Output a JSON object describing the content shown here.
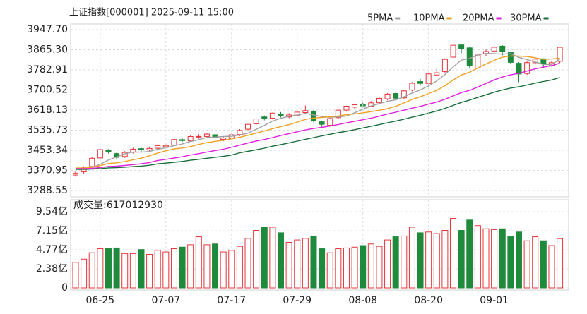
{
  "chart_data": [
    {
      "type": "candlestick",
      "title": "上证指数[000001] 2025-09-11 15:00",
      "categories": [
        null,
        null,
        null,
        "06-25",
        null,
        null,
        null,
        null,
        null,
        null,
        null,
        "07-07",
        null,
        null,
        null,
        null,
        null,
        null,
        null,
        "07-17",
        null,
        null,
        null,
        null,
        null,
        null,
        null,
        "07-29",
        null,
        null,
        null,
        null,
        null,
        null,
        null,
        "08-08",
        null,
        null,
        null,
        null,
        null,
        null,
        null,
        "08-20",
        null,
        null,
        null,
        null,
        null,
        null,
        null,
        "09-01",
        null,
        null,
        null,
        null,
        null,
        null,
        null,
        null
      ],
      "open": [
        3352,
        3365,
        3387,
        3422,
        3452,
        3440,
        3428,
        3446,
        3460,
        3455,
        3462,
        3468,
        3474,
        3497,
        3492,
        3508,
        3510,
        3517,
        3498,
        3502,
        3518,
        3540,
        3562,
        3590,
        3585,
        3602,
        3590,
        3597,
        3608,
        3612,
        3570,
        3556,
        3587,
        3618,
        3630,
        3641,
        3634,
        3648,
        3664,
        3686,
        3668,
        3700,
        3735,
        3727,
        3762,
        3776,
        3835,
        3885,
        3873,
        3790,
        3848,
        3860,
        3880,
        3855,
        3810,
        3768,
        3812,
        3828,
        3800,
        3818
      ],
      "high": [
        3368,
        3388,
        3425,
        3460,
        3458,
        3446,
        3450,
        3464,
        3466,
        3468,
        3478,
        3480,
        3503,
        3502,
        3515,
        3520,
        3524,
        3522,
        3510,
        3521,
        3540,
        3562,
        3586,
        3596,
        3608,
        3610,
        3605,
        3613,
        3637,
        3618,
        3575,
        3586,
        3620,
        3636,
        3645,
        3648,
        3655,
        3670,
        3688,
        3690,
        3700,
        3733,
        3746,
        3768,
        3789,
        3830,
        3888,
        3888,
        3878,
        3847,
        3866,
        3884,
        3884,
        3858,
        3815,
        3818,
        3834,
        3830,
        3818,
        3877
      ],
      "low": [
        3345,
        3358,
        3383,
        3415,
        3440,
        3418,
        3422,
        3440,
        3448,
        3450,
        3456,
        3461,
        3470,
        3487,
        3488,
        3500,
        3503,
        3498,
        3490,
        3496,
        3512,
        3535,
        3556,
        3576,
        3580,
        3588,
        3585,
        3592,
        3600,
        3568,
        3550,
        3552,
        3583,
        3612,
        3623,
        3628,
        3630,
        3642,
        3658,
        3660,
        3662,
        3695,
        3718,
        3718,
        3757,
        3770,
        3830,
        3851,
        3792,
        3774,
        3840,
        3852,
        3842,
        3806,
        3732,
        3762,
        3805,
        3790,
        3795,
        3812
      ],
      "close": [
        3359.9,
        3381.58,
        3420.57,
        3455.97,
        3448.45,
        3424.23,
        3444.43,
        3457.75,
        3454.79,
        3461.15,
        3472.32,
        3473.13,
        3497.48,
        3493.05,
        3509.68,
        3510.18,
        3519.65,
        3505.0,
        3503.78,
        3516.83,
        3534.48,
        3559.79,
        3581.86,
        3582.3,
        3605.73,
        3593.66,
        3597.94,
        3609.71,
        3615.72,
        3573.21,
        3559.95,
        3583.31,
        3617.6,
        3633.99,
        3639.67,
        3635.13,
        3647.55,
        3665.92,
        3683.46,
        3666.44,
        3696.77,
        3728.03,
        3727.29,
        3766.21,
        3771.1,
        3825.76,
        3883.56,
        3868.38,
        3800.35,
        3843.6,
        3857.93,
        3875.53,
        3858.13,
        3813.56,
        3765.88,
        3812.51,
        3826.84,
        3807.29,
        3812.22,
        3875.31
      ],
      "up_color": "#e8333a",
      "down_color": "#1f8a3c",
      "series": [
        {
          "name": "5PMA",
          "color": "#a0a0a0",
          "values": [
            3377.4,
            3376.0,
            3382.6,
            3396.0,
            3413.3,
            3426.2,
            3438.7,
            3446.2,
            3445.9,
            3448.5,
            3458.1,
            3463.8,
            3471.8,
            3479.4,
            3489.1,
            3496.7,
            3506.0,
            3507.5,
            3509.6,
            3511.1,
            3516.0,
            3524.0,
            3539.4,
            3555.1,
            3572.9,
            3584.7,
            3592.3,
            3597.9,
            3604.6,
            3598.1,
            3591.4,
            3588.5,
            3590.1,
            3593.7,
            3607.0,
            3622.0,
            3634.8,
            3644.5,
            3654.4,
            3659.8,
            3672.1,
            3688.2,
            3700.5,
            3717.0,
            3737.9,
            3763.7,
            3794.8,
            3823.0,
            3829.8,
            3844.3,
            3850.7,
            3849.1,
            3847.0,
            3849.7,
            3834.2,
            3825.1,
            3815.4,
            3805.2,
            3804.9,
            3826.8
          ]
        },
        {
          "name": "10PMA",
          "color": "#f0a020",
          "values": [
            3381.2,
            3380.5,
            3383.8,
            3390.5,
            3399.2,
            3401.8,
            3407.4,
            3414.4,
            3421.0,
            3430.9,
            3442.2,
            3451.3,
            3459.0,
            3462.7,
            3468.8,
            3477.4,
            3484.9,
            3489.7,
            3494.5,
            3500.1,
            3506.4,
            3515.0,
            3523.5,
            3532.4,
            3542.0,
            3550.4,
            3558.2,
            3568.7,
            3579.9,
            3585.5,
            3588.1,
            3590.4,
            3594.0,
            3599.2,
            3602.6,
            3606.7,
            3611.7,
            3617.3,
            3624.1,
            3633.4,
            3647.1,
            3661.5,
            3672.5,
            3685.7,
            3698.9,
            3717.9,
            3741.5,
            3761.8,
            3773.4,
            3791.1,
            3807.2,
            3822.0,
            3835.0,
            3839.8,
            3839.3,
            3837.9,
            3832.3,
            3826.1,
            3827.3,
            3830.5
          ]
        },
        {
          "name": "20PMA",
          "color": "#e020e0",
          "values": [
            3378.1,
            3377.8,
            3379.4,
            3382.8,
            3387.1,
            3388.4,
            3391.2,
            3394.7,
            3398.0,
            3403.0,
            3411.7,
            3415.9,
            3421.4,
            3426.6,
            3434.0,
            3439.6,
            3446.2,
            3452.1,
            3457.8,
            3465.5,
            3474.3,
            3483.2,
            3491.3,
            3497.6,
            3505.4,
            3513.9,
            3521.6,
            3529.2,
            3537.2,
            3542.8,
            3547.3,
            3552.7,
            3558.8,
            3565.8,
            3572.3,
            3578.6,
            3585.0,
            3593.0,
            3602.0,
            3609.5,
            3617.6,
            3626.0,
            3633.3,
            3642.5,
            3650.8,
            3662.3,
            3676.6,
            3689.6,
            3698.8,
            3712.3,
            3727.2,
            3741.8,
            3753.8,
            3762.8,
            3769.1,
            3777.9,
            3786.9,
            3794.0,
            3800.4,
            3810.8
          ]
        },
        {
          "name": "30PMA",
          "color": "#1a6e3a",
          "values": [
            3375.4,
            3375.2,
            3376.3,
            3378.5,
            3381.4,
            3382.3,
            3384.1,
            3386.5,
            3388.7,
            3392.0,
            3397.8,
            3400.6,
            3404.3,
            3407.7,
            3412.7,
            3416.4,
            3420.8,
            3424.7,
            3428.5,
            3433.7,
            3443.3,
            3449.0,
            3455.5,
            3461.9,
            3470.0,
            3476.5,
            3483.5,
            3490.9,
            3498.5,
            3505.5,
            3512.3,
            3518.9,
            3525.5,
            3531.4,
            3537.8,
            3544.9,
            3551.6,
            3558.6,
            3566.2,
            3573.0,
            3580.5,
            3589.0,
            3596.7,
            3605.8,
            3614.5,
            3625.0,
            3637.1,
            3649.3,
            3659.2,
            3670.0,
            3680.8,
            3691.3,
            3700.5,
            3708.3,
            3713.6,
            3720.8,
            3728.5,
            3735.1,
            3741.6,
            3751.7
          ]
        }
      ],
      "ylim": [
        3288.55,
        3947.7
      ],
      "yticks": [
        {
          "value": 3947.7,
          "label": "3947.70"
        },
        {
          "value": 3865.3,
          "label": "3865.30"
        },
        3782.91,
        3700.52,
        3618.13,
        3535.73,
        3453.34,
        3370.95,
        3288.55
      ],
      "grid": true
    },
    {
      "type": "bar",
      "title": "成交量:617012930",
      "values": [
        3.2,
        3.6,
        4.4,
        4.9,
        4.9,
        5.0,
        4.3,
        4.3,
        4.8,
        4.2,
        4.7,
        4.5,
        4.9,
        5.1,
        5.4,
        6.4,
        5.4,
        5.5,
        4.5,
        4.7,
        5.2,
        6.2,
        7.2,
        7.6,
        7.6,
        6.9,
        5.7,
        6.0,
        6.2,
        6.5,
        4.9,
        4.4,
        4.9,
        5.0,
        5.1,
        5.3,
        5.5,
        5.2,
        6.0,
        6.4,
        6.5,
        7.6,
        6.9,
        7.0,
        6.8,
        7.2,
        8.7,
        7.2,
        8.5,
        7.8,
        7.4,
        7.3,
        7.4,
        6.4,
        7.0,
        5.9,
        6.4,
        5.9,
        5.3,
        6.17
      ],
      "ylim": [
        0,
        10.25
      ],
      "yticks": [
        {
          "value": 9.54,
          "label": "9.54亿"
        },
        {
          "value": 7.15,
          "label": "7.15亿"
        },
        {
          "value": 4.77,
          "label": "4.77亿"
        },
        {
          "value": 2.38,
          "label": "2.38亿"
        },
        0
      ],
      "grid": true
    }
  ]
}
